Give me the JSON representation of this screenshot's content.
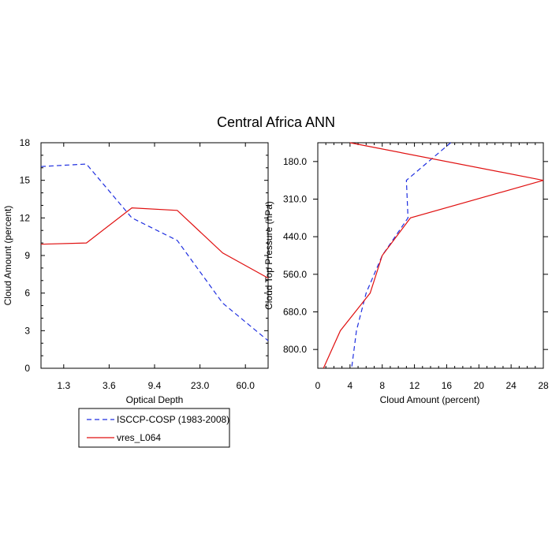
{
  "figure": {
    "title": "Central Africa ANN"
  },
  "colors": {
    "obs": "#1f2fe0",
    "model": "#e01010",
    "axis": "#000000"
  },
  "chart_data": [
    {
      "type": "line",
      "xlabel": "Optical Depth",
      "ylabel": "Cloud Amount (percent)",
      "x_categories": [
        "1.3",
        "3.6",
        "9.4",
        "23.0",
        "60.0"
      ],
      "x_positions": [
        0.5,
        1.5,
        2.5,
        3.5,
        4.5,
        5.5
      ],
      "ylim": [
        0,
        18
      ],
      "yticks": [
        0,
        3,
        6,
        9,
        12,
        15,
        18
      ],
      "series": [
        {
          "name": "ISCCP-COSP (1983-2008)",
          "style": "dashed",
          "values": [
            16.1,
            16.3,
            12.0,
            10.2,
            5.2,
            2.2
          ]
        },
        {
          "name": "vres_L064",
          "style": "solid",
          "values": [
            9.9,
            10.0,
            12.8,
            12.6,
            9.2,
            7.2
          ]
        }
      ],
      "legend": {
        "placement": "below-left"
      }
    },
    {
      "type": "line",
      "xlabel": "Cloud Amount (percent)",
      "ylabel": "Cloud Top Pressure (hPa)",
      "xlim": [
        0,
        28
      ],
      "xticks": [
        0,
        4,
        8,
        12,
        16,
        20,
        24,
        28
      ],
      "ytick_labels": [
        "180.0",
        "310.0",
        "440.0",
        "560.0",
        "680.0",
        "800.0"
      ],
      "y_positions": [
        0.5,
        1.5,
        2.5,
        3.5,
        4.5,
        5.5,
        6.5
      ],
      "series": [
        {
          "name": "ISCCP-COSP (1983-2008)",
          "style": "dashed",
          "values": [
            16.5,
            11.0,
            11.2,
            8.0,
            6.0,
            4.8,
            4.2
          ]
        },
        {
          "name": "vres_L064",
          "style": "solid",
          "values": [
            4.0,
            28.0,
            11.5,
            8.0,
            6.5,
            2.8,
            0.7
          ]
        }
      ]
    }
  ]
}
